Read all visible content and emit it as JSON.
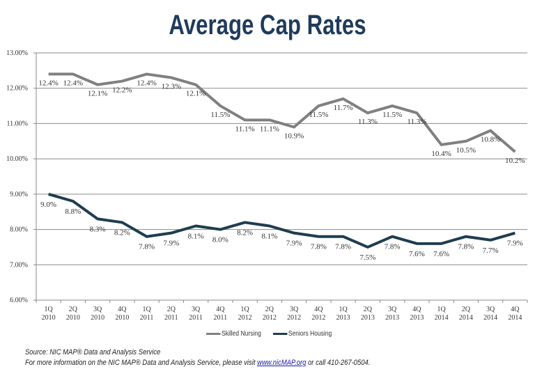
{
  "chart_data": {
    "type": "line",
    "title": "Average Cap Rates",
    "xlabel": "",
    "ylabel": "",
    "ylim": [
      6,
      13
    ],
    "yticks": [
      "6.00%",
      "7.00%",
      "8.00%",
      "9.00%",
      "10.00%",
      "11.00%",
      "12.00%",
      "13.00%"
    ],
    "grid": true,
    "legend_position": "bottom",
    "categories": [
      [
        "1Q",
        "2010"
      ],
      [
        "2Q",
        "2010"
      ],
      [
        "3Q",
        "2010"
      ],
      [
        "4Q",
        "2010"
      ],
      [
        "1Q",
        "2011"
      ],
      [
        "2Q",
        "2011"
      ],
      [
        "3Q",
        "2011"
      ],
      [
        "4Q",
        "2011"
      ],
      [
        "1Q",
        "2012"
      ],
      [
        "2Q",
        "2012"
      ],
      [
        "3Q",
        "2012"
      ],
      [
        "4Q",
        "2012"
      ],
      [
        "1Q",
        "2013"
      ],
      [
        "2Q",
        "2013"
      ],
      [
        "3Q",
        "2013"
      ],
      [
        "4Q",
        "2013"
      ],
      [
        "1Q",
        "2014"
      ],
      [
        "2Q",
        "2014"
      ],
      [
        "3Q",
        "2014"
      ],
      [
        "4Q",
        "2014"
      ]
    ],
    "series": [
      {
        "name": "Skilled Nursing",
        "color": "#808080",
        "values": [
          12.4,
          12.4,
          12.1,
          12.2,
          12.4,
          12.3,
          12.1,
          11.5,
          11.1,
          11.1,
          10.9,
          11.5,
          11.7,
          11.3,
          11.5,
          11.3,
          10.4,
          10.5,
          10.8,
          10.2
        ]
      },
      {
        "name": "Seniors Housing",
        "color": "#1e3d4f",
        "values": [
          9.0,
          8.8,
          8.3,
          8.2,
          7.8,
          7.9,
          8.1,
          8.0,
          8.2,
          8.1,
          7.9,
          7.8,
          7.8,
          7.5,
          7.8,
          7.6,
          7.6,
          7.8,
          7.7,
          7.9
        ]
      }
    ]
  },
  "footer": {
    "source": "Source: NIC MAP® Data and Analysis Service",
    "info_prefix": "For more information on the NIC MAP® Data and Analysis Service, please visit ",
    "link": "www.nicMAP.org",
    "info_suffix": " or call 410-267-0504."
  }
}
